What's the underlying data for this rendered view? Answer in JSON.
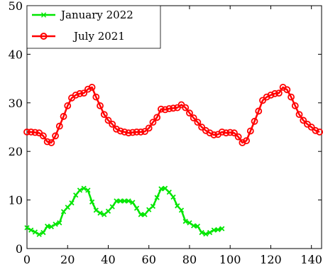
{
  "chart_data": {
    "type": "line",
    "xlim": [
      0,
      145
    ],
    "ylim": [
      0,
      50
    ],
    "xticks": [
      0,
      20,
      40,
      60,
      80,
      100,
      120,
      140
    ],
    "yticks": [
      0,
      10,
      20,
      30,
      40,
      50
    ],
    "grid": false,
    "legend_position": "top-left",
    "series": [
      {
        "name": "January 2022",
        "color": "#00e600",
        "marker": "x",
        "x": [
          0,
          2,
          4,
          6,
          8,
          10,
          12,
          14,
          16,
          18,
          20,
          22,
          24,
          26,
          28,
          30,
          32,
          34,
          36,
          38,
          40,
          42,
          44,
          46,
          48,
          50,
          52,
          54,
          56,
          58,
          60,
          62,
          64,
          66,
          68,
          70,
          72,
          74,
          76,
          78,
          80,
          82,
          84,
          86,
          88,
          90,
          92,
          94,
          96
        ],
        "y": [
          4.3,
          3.8,
          3.4,
          2.9,
          3.3,
          4.6,
          4.5,
          5.0,
          5.3,
          7.6,
          8.5,
          9.4,
          11.0,
          12.0,
          12.4,
          12.0,
          9.6,
          7.9,
          7.3,
          7.0,
          7.7,
          8.6,
          9.8,
          9.8,
          9.8,
          9.8,
          9.5,
          8.3,
          7.0,
          7.0,
          8.0,
          8.7,
          10.5,
          12.3,
          12.4,
          11.6,
          10.6,
          8.8,
          7.9,
          5.6,
          5.3,
          4.7,
          4.6,
          3.3,
          3.0,
          3.3,
          3.8,
          3.9,
          4.1
        ]
      },
      {
        "name": "July 2021",
        "color": "#ff0000",
        "marker": "o",
        "x": [
          0,
          2,
          4,
          6,
          8,
          10,
          12,
          14,
          16,
          18,
          20,
          22,
          24,
          26,
          28,
          30,
          32,
          34,
          36,
          38,
          40,
          42,
          44,
          46,
          48,
          50,
          52,
          54,
          56,
          58,
          60,
          62,
          64,
          66,
          68,
          70,
          72,
          74,
          76,
          78,
          80,
          82,
          84,
          86,
          88,
          90,
          92,
          94,
          96,
          98,
          100,
          102,
          104,
          106,
          108,
          110,
          112,
          114,
          116,
          118,
          120,
          122,
          124,
          126,
          128,
          130,
          132,
          134,
          136,
          138,
          140,
          142,
          144
        ],
        "y": [
          24.0,
          24.0,
          23.9,
          23.8,
          23.2,
          22.0,
          21.8,
          23.2,
          25.2,
          27.2,
          29.4,
          31.0,
          31.6,
          31.9,
          32.0,
          32.8,
          33.2,
          31.2,
          29.4,
          27.6,
          26.4,
          25.6,
          24.6,
          24.2,
          24.0,
          23.8,
          23.9,
          24.0,
          24.0,
          24.1,
          24.8,
          26.0,
          27.0,
          28.7,
          28.6,
          28.8,
          28.9,
          29.0,
          29.6,
          29.0,
          27.9,
          26.9,
          26.0,
          25.0,
          24.3,
          23.8,
          23.4,
          23.5,
          24.0,
          23.8,
          23.9,
          23.8,
          23.0,
          21.8,
          22.2,
          24.2,
          26.2,
          28.3,
          30.5,
          31.2,
          31.6,
          31.9,
          32.0,
          33.2,
          32.7,
          31.2,
          29.4,
          27.6,
          26.4,
          25.6,
          25.0,
          24.3,
          24.0
        ]
      }
    ]
  }
}
